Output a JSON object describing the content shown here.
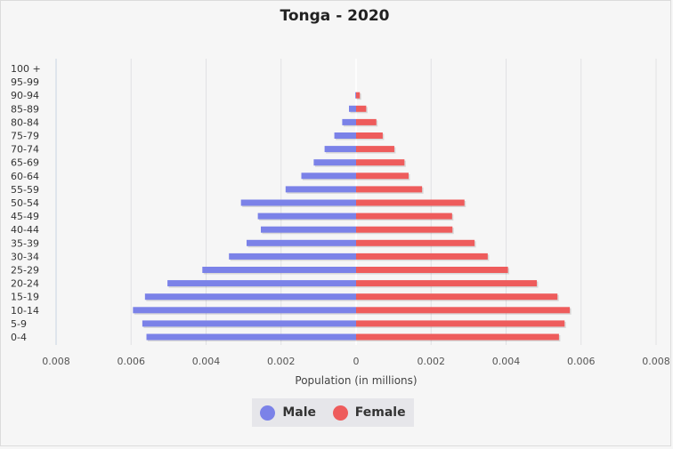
{
  "chart_data": {
    "type": "bar",
    "title": "Tonga - 2020",
    "xlabel": "Population (in millions)",
    "ylabel": "",
    "xlim": [
      -0.008,
      0.008
    ],
    "x_ticks": [
      "0.008",
      "0.006",
      "0.004",
      "0.002",
      "0",
      "0.002",
      "0.004",
      "0.006",
      "0.008"
    ],
    "categories": [
      "100 +",
      "95-99",
      "90-94",
      "85-89",
      "80-84",
      "75-79",
      "70-74",
      "65-69",
      "60-64",
      "55-59",
      "50-54",
      "45-49",
      "40-44",
      "35-39",
      "30-34",
      "25-29",
      "20-24",
      "15-19",
      "10-14",
      "5-9",
      "0-4"
    ],
    "series": [
      {
        "name": "Male",
        "color": "#7b82e8",
        "values": [
          0,
          0,
          2e-05,
          0.00019,
          0.00037,
          0.00058,
          0.00084,
          0.00113,
          0.00146,
          0.00188,
          0.00307,
          0.00262,
          0.00254,
          0.00292,
          0.00339,
          0.0041,
          0.00503,
          0.00563,
          0.00595,
          0.0057,
          0.00559
        ]
      },
      {
        "name": "Female",
        "color": "#ee5c5c",
        "values": [
          0,
          0,
          0.0001,
          0.00027,
          0.00054,
          0.00071,
          0.00102,
          0.00129,
          0.0014,
          0.00176,
          0.00289,
          0.00256,
          0.00257,
          0.00316,
          0.00351,
          0.00405,
          0.00482,
          0.00537,
          0.0057,
          0.00556,
          0.00541
        ]
      }
    ],
    "grid": true,
    "legend": "bottom-center"
  }
}
